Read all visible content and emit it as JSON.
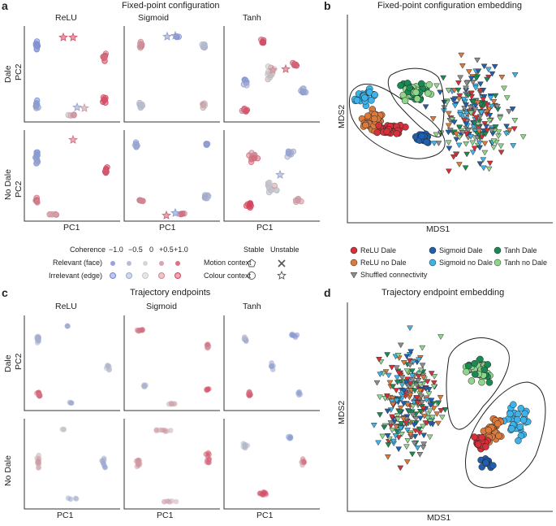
{
  "panel_labels": [
    "a",
    "b",
    "c",
    "d"
  ],
  "chart_data": [
    {
      "type": "scatter",
      "panel": "a",
      "title": "Fixed-point configuration",
      "columns": [
        "ReLU",
        "Sigmoid",
        "Tanh"
      ],
      "rows": [
        "Dale",
        "No Dale"
      ],
      "xlabel": "PC1",
      "ylabel": "PC2"
    },
    {
      "type": "scatter",
      "panel": "b",
      "title": "Fixed-point configuration embedding",
      "xlabel": "MDS1",
      "ylabel": "MDS2",
      "groups": [
        "ReLU Dale",
        "ReLU no Dale",
        "Sigmoid Dale",
        "Sigmoid no Dale",
        "Tanh Dale",
        "Tanh no Dale",
        "Shuffled connectivity"
      ]
    },
    {
      "type": "scatter",
      "panel": "c",
      "title": "Trajectory endpoints",
      "columns": [
        "ReLU",
        "Sigmoid",
        "Tanh"
      ],
      "rows": [
        "Dale",
        "No Dale"
      ],
      "xlabel": "PC1",
      "ylabel": "PC2"
    },
    {
      "type": "scatter",
      "panel": "d",
      "title": "Trajectory endpoint embedding",
      "xlabel": "MDS1",
      "ylabel": "MDS2"
    }
  ],
  "legend_a": {
    "coherence_label": "Coherence",
    "coherence_values": [
      "−1.0",
      "−0.5",
      "0",
      "+0.5",
      "+1.0"
    ],
    "relevant_label": "Relevant (face)",
    "irrelevant_label": "Irrelevant (edge)",
    "stable_label": "Stable",
    "unstable_label": "Unstable",
    "motion_label": "Motion context",
    "colour_label": "Colour context"
  },
  "legend_b": {
    "items": [
      {
        "label": "ReLU Dale",
        "color": "#d7303a",
        "shape": "circle"
      },
      {
        "label": "Sigmoid Dale",
        "color": "#1f5fae",
        "shape": "circle"
      },
      {
        "label": "Tanh Dale",
        "color": "#1a8a55",
        "shape": "circle"
      },
      {
        "label": "ReLU no Dale",
        "color": "#dc7a3c",
        "shape": "circle"
      },
      {
        "label": "Sigmoid no Dale",
        "color": "#3db3ea",
        "shape": "circle"
      },
      {
        "label": "Tanh no Dale",
        "color": "#8fd68a",
        "shape": "circle"
      },
      {
        "label": "Shuffled connectivity",
        "color": "#8c8c8c",
        "shape": "triangle"
      }
    ]
  },
  "colors": {
    "neg": "#6f86d6",
    "mid": "#c8c8c8",
    "pos": "#d6405a"
  }
}
